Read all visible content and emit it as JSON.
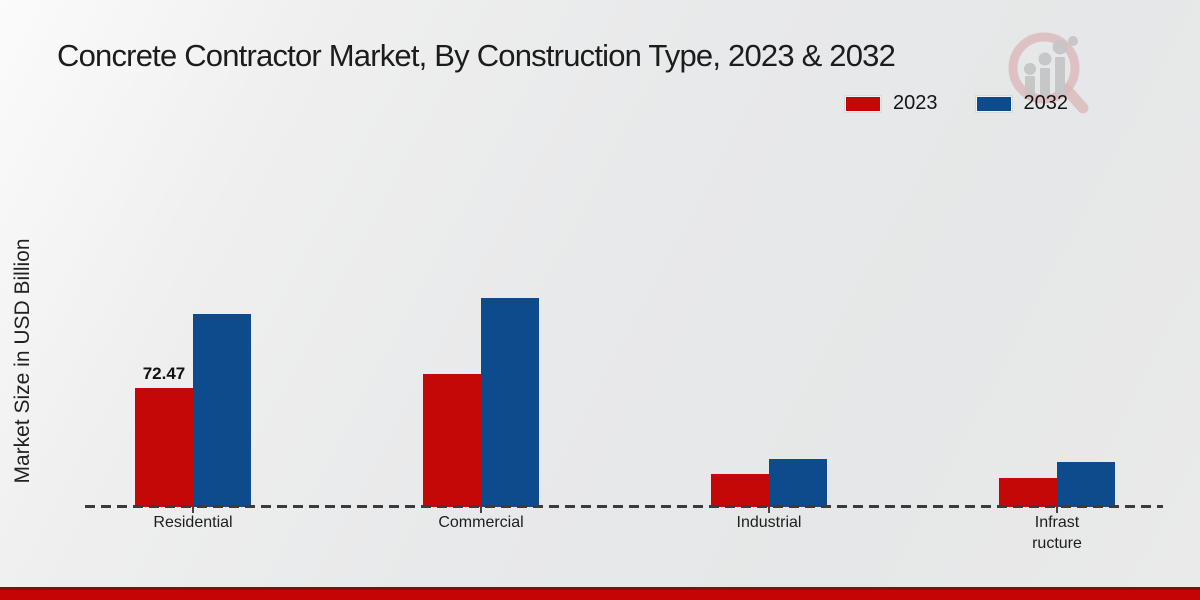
{
  "page": {
    "title": "Concrete Contractor Market, By Construction Type, 2023 & 2032"
  },
  "chart_data": {
    "type": "bar",
    "title": "Concrete Contractor Market, By Construction Type, 2023 & 2032",
    "xlabel": "",
    "ylabel": "Market Size in USD Billion",
    "categories": [
      "Residential",
      "Commercial",
      "Industrial",
      "Infrastructure"
    ],
    "category_display": [
      "Residential",
      "Commercial",
      "Industrial",
      "Infrast\nructure"
    ],
    "series": [
      {
        "name": "2023",
        "color": "#c40707",
        "values": [
          72.47,
          81,
          20.3,
          17.9
        ]
      },
      {
        "name": "2032",
        "color": "#0d4b8c",
        "values": [
          117.3,
          127.1,
          29.4,
          27.6
        ]
      }
    ],
    "data_labels": [
      {
        "series_index": 0,
        "category_index": 0,
        "text": "72.47"
      }
    ],
    "ylim": [
      0,
      140
    ],
    "grid": false,
    "legend_position": "top-right",
    "axis_line_style": "dashed"
  },
  "legend": {
    "items": [
      {
        "label": "2023",
        "color": "#c40707"
      },
      {
        "label": "2032",
        "color": "#0d4b8c"
      }
    ]
  },
  "watermark": {
    "name": "magnifier-bar-chart-logo"
  },
  "colors": {
    "series_2023": "#c40707",
    "series_2032": "#0d4b8c",
    "axis_line": "#3b3b3b",
    "footer_band": "#c50505",
    "footer_band_top": "#8e0a0a",
    "text": "#1a1a1a"
  }
}
